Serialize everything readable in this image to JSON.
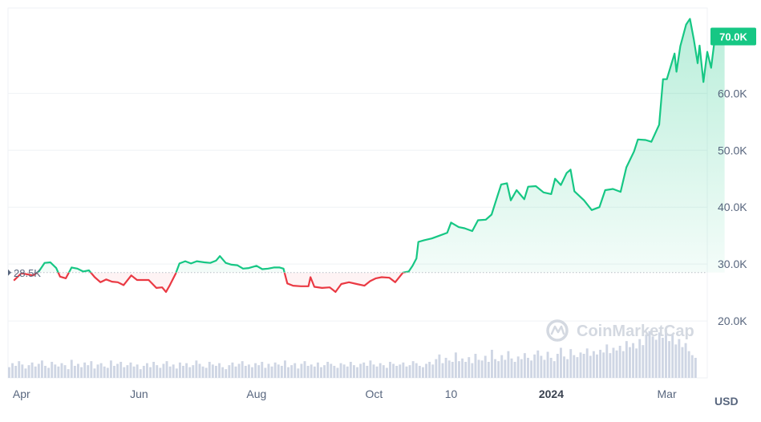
{
  "currency": "USD",
  "watermark": "CoinMarketCap",
  "chart_data": {
    "type": "area",
    "y_ticks": [
      20000,
      30000,
      40000,
      50000,
      60000
    ],
    "y_tick_labels": [
      "20.0K",
      "30.0K",
      "40.0K",
      "50.0K",
      "60.0K"
    ],
    "ylim": [
      10000,
      75000
    ],
    "x_ticks": [
      {
        "label": "Apr",
        "date": "2023-04-01"
      },
      {
        "label": "Jun",
        "date": "2023-06-01"
      },
      {
        "label": "Aug",
        "date": "2023-08-01"
      },
      {
        "label": "Oct",
        "date": "2023-10-01"
      },
      {
        "label": "10",
        "date": "2023-11-10"
      },
      {
        "label": "2024",
        "date": "2024-01-01"
      },
      {
        "label": "Mar",
        "date": "2024-03-01"
      }
    ],
    "x_start": "2023-03-25",
    "x_end": "2024-03-17",
    "reference": {
      "value": 28500,
      "label": "28.5K"
    },
    "current": {
      "value": 70000,
      "label": "70.0K"
    },
    "colors": {
      "above": "#16c784",
      "below": "#ea3943",
      "reference": "#b7bdc6"
    },
    "series": [
      {
        "values": [
          [
            "2023-03-28",
            27100
          ],
          [
            "2023-04-01",
            28400
          ],
          [
            "2023-04-04",
            28200
          ],
          [
            "2023-04-07",
            28000
          ],
          [
            "2023-04-10",
            28700
          ],
          [
            "2023-04-13",
            30200
          ],
          [
            "2023-04-16",
            30300
          ],
          [
            "2023-04-19",
            29300
          ],
          [
            "2023-04-21",
            27800
          ],
          [
            "2023-04-24",
            27500
          ],
          [
            "2023-04-27",
            29400
          ],
          [
            "2023-04-30",
            29200
          ],
          [
            "2023-05-03",
            28700
          ],
          [
            "2023-05-06",
            28900
          ],
          [
            "2023-05-09",
            27700
          ],
          [
            "2023-05-12",
            26800
          ],
          [
            "2023-05-15",
            27300
          ],
          [
            "2023-05-18",
            26900
          ],
          [
            "2023-05-21",
            26800
          ],
          [
            "2023-05-24",
            26300
          ],
          [
            "2023-05-28",
            28000
          ],
          [
            "2023-05-31",
            27200
          ],
          [
            "2023-06-03",
            27200
          ],
          [
            "2023-06-06",
            27200
          ],
          [
            "2023-06-10",
            25800
          ],
          [
            "2023-06-13",
            25900
          ],
          [
            "2023-06-15",
            25100
          ],
          [
            "2023-06-17",
            26300
          ],
          [
            "2023-06-20",
            28300
          ],
          [
            "2023-06-22",
            30100
          ],
          [
            "2023-06-25",
            30500
          ],
          [
            "2023-06-28",
            30100
          ],
          [
            "2023-07-01",
            30500
          ],
          [
            "2023-07-05",
            30300
          ],
          [
            "2023-07-08",
            30200
          ],
          [
            "2023-07-11",
            30600
          ],
          [
            "2023-07-13",
            31400
          ],
          [
            "2023-07-16",
            30200
          ],
          [
            "2023-07-19",
            29900
          ],
          [
            "2023-07-22",
            29800
          ],
          [
            "2023-07-25",
            29200
          ],
          [
            "2023-07-28",
            29300
          ],
          [
            "2023-08-01",
            29700
          ],
          [
            "2023-08-04",
            29100
          ],
          [
            "2023-08-07",
            29200
          ],
          [
            "2023-08-10",
            29400
          ],
          [
            "2023-08-13",
            29400
          ],
          [
            "2023-08-15",
            29200
          ],
          [
            "2023-08-17",
            26600
          ],
          [
            "2023-08-20",
            26200
          ],
          [
            "2023-08-24",
            26100
          ],
          [
            "2023-08-28",
            26100
          ],
          [
            "2023-08-29",
            27700
          ],
          [
            "2023-08-31",
            26000
          ],
          [
            "2023-09-04",
            25800
          ],
          [
            "2023-09-08",
            25900
          ],
          [
            "2023-09-11",
            25100
          ],
          [
            "2023-09-14",
            26500
          ],
          [
            "2023-09-18",
            26800
          ],
          [
            "2023-09-22",
            26500
          ],
          [
            "2023-09-26",
            26200
          ],
          [
            "2023-09-29",
            27000
          ],
          [
            "2023-10-02",
            27500
          ],
          [
            "2023-10-05",
            27700
          ],
          [
            "2023-10-09",
            27600
          ],
          [
            "2023-10-12",
            26800
          ],
          [
            "2023-10-16",
            28500
          ],
          [
            "2023-10-19",
            28700
          ],
          [
            "2023-10-21",
            29700
          ],
          [
            "2023-10-23",
            31000
          ],
          [
            "2023-10-24",
            33900
          ],
          [
            "2023-10-27",
            34200
          ],
          [
            "2023-10-31",
            34500
          ],
          [
            "2023-11-04",
            35000
          ],
          [
            "2023-11-08",
            35500
          ],
          [
            "2023-11-10",
            37300
          ],
          [
            "2023-11-14",
            36500
          ],
          [
            "2023-11-17",
            36300
          ],
          [
            "2023-11-21",
            35800
          ],
          [
            "2023-11-24",
            37700
          ],
          [
            "2023-11-28",
            37800
          ],
          [
            "2023-12-01",
            38700
          ],
          [
            "2023-12-04",
            41900
          ],
          [
            "2023-12-06",
            44000
          ],
          [
            "2023-12-09",
            44200
          ],
          [
            "2023-12-11",
            41200
          ],
          [
            "2023-12-14",
            43000
          ],
          [
            "2023-12-18",
            41400
          ],
          [
            "2023-12-20",
            43600
          ],
          [
            "2023-12-24",
            43700
          ],
          [
            "2023-12-28",
            42600
          ],
          [
            "2024-01-01",
            42300
          ],
          [
            "2024-01-03",
            45000
          ],
          [
            "2024-01-06",
            43900
          ],
          [
            "2024-01-09",
            46000
          ],
          [
            "2024-01-11",
            46600
          ],
          [
            "2024-01-13",
            42800
          ],
          [
            "2024-01-18",
            41200
          ],
          [
            "2024-01-22",
            39500
          ],
          [
            "2024-01-26",
            40000
          ],
          [
            "2024-01-29",
            43000
          ],
          [
            "2024-02-02",
            43200
          ],
          [
            "2024-02-06",
            42700
          ],
          [
            "2024-02-09",
            47000
          ],
          [
            "2024-02-13",
            49800
          ],
          [
            "2024-02-15",
            51900
          ],
          [
            "2024-02-19",
            51800
          ],
          [
            "2024-02-22",
            51500
          ],
          [
            "2024-02-26",
            54500
          ],
          [
            "2024-02-28",
            62500
          ],
          [
            "2024-03-01",
            62500
          ],
          [
            "2024-03-05",
            67000
          ],
          [
            "2024-03-06",
            63800
          ],
          [
            "2024-03-08",
            68300
          ],
          [
            "2024-03-11",
            72100
          ],
          [
            "2024-03-13",
            73100
          ],
          [
            "2024-03-15",
            69500
          ],
          [
            "2024-03-17",
            65300
          ],
          [
            "2024-03-18",
            68400
          ],
          [
            "2024-03-20",
            62000
          ],
          [
            "2024-03-22",
            67300
          ],
          [
            "2024-03-24",
            64500
          ],
          [
            "2024-03-26",
            69900
          ],
          [
            "2024-03-29",
            70000
          ],
          [
            "2024-03-31",
            70000
          ]
        ]
      }
    ],
    "volume": [
      16,
      22,
      18,
      25,
      20,
      14,
      19,
      23,
      17,
      21,
      26,
      18,
      15,
      24,
      20,
      17,
      22,
      19,
      13,
      27,
      18,
      21,
      16,
      23,
      19,
      25,
      14,
      20,
      22,
      17,
      15,
      26,
      18,
      21,
      24,
      16,
      19,
      23,
      17,
      20,
      13,
      18,
      22,
      16,
      24,
      19,
      15,
      21,
      25,
      17,
      20,
      14,
      23,
      18,
      22,
      16,
      19,
      26,
      21,
      17,
      15,
      24,
      20,
      18,
      22,
      16,
      13,
      19,
      23,
      17,
      21,
      25,
      18,
      20,
      16,
      22,
      19,
      24,
      15,
      21,
      17,
      23,
      20,
      18,
      26,
      16,
      19,
      22,
      14,
      21,
      25,
      18,
      20,
      17,
      23,
      16,
      19,
      24,
      21,
      18,
      15,
      22,
      20,
      17,
      24,
      19,
      16,
      21,
      23,
      18,
      26,
      20,
      17,
      22,
      19,
      15,
      24,
      21,
      18,
      20,
      23,
      17,
      19,
      25,
      22,
      18,
      16,
      21,
      24,
      20,
      28,
      35,
      22,
      30,
      26,
      24,
      38,
      25,
      29,
      24,
      31,
      22,
      36,
      27,
      26,
      33,
      24,
      42,
      28,
      25,
      34,
      27,
      40,
      29,
      24,
      32,
      28,
      37,
      30,
      26,
      35,
      41,
      33,
      27,
      39,
      30,
      25,
      36,
      45,
      32,
      28,
      43,
      34,
      31,
      38,
      36,
      44,
      33,
      40,
      35,
      42,
      38,
      50,
      37,
      45,
      41,
      48,
      40,
      55,
      46,
      52,
      44,
      58,
      49,
      65,
      70,
      62,
      57,
      68,
      60,
      72,
      55,
      64,
      50,
      58,
      46,
      52,
      40,
      34,
      30
    ]
  }
}
